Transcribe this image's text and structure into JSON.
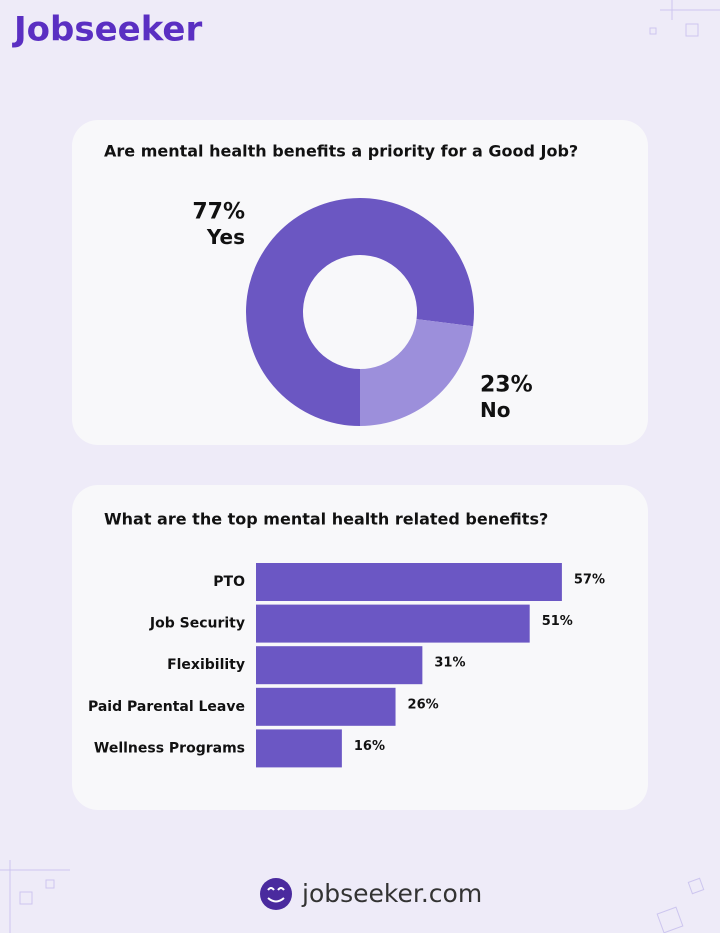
{
  "header": {
    "logo": "Jobseeker"
  },
  "chart_data": [
    {
      "type": "pie",
      "title": "Are mental health benefits a priority for a Good Job?",
      "categories": [
        "Yes",
        "No"
      ],
      "values": [
        77,
        23
      ],
      "value_labels": [
        "77%",
        "23%"
      ],
      "colors": [
        "#6b57c2",
        "#9c8fdb"
      ]
    },
    {
      "type": "bar",
      "orientation": "horizontal",
      "title": "What are the top mental health related benefits?",
      "categories": [
        "PTO",
        "Job Security",
        "Flexibility",
        "Paid Parental Leave",
        "Wellness Programs"
      ],
      "values": [
        57,
        51,
        31,
        26,
        16
      ],
      "value_labels": [
        "57%",
        "51%",
        "31%",
        "26%",
        "16%"
      ],
      "color": "#6b57c4",
      "xlim": [
        0,
        60
      ]
    }
  ],
  "footer": {
    "site": "jobseeker.com"
  }
}
